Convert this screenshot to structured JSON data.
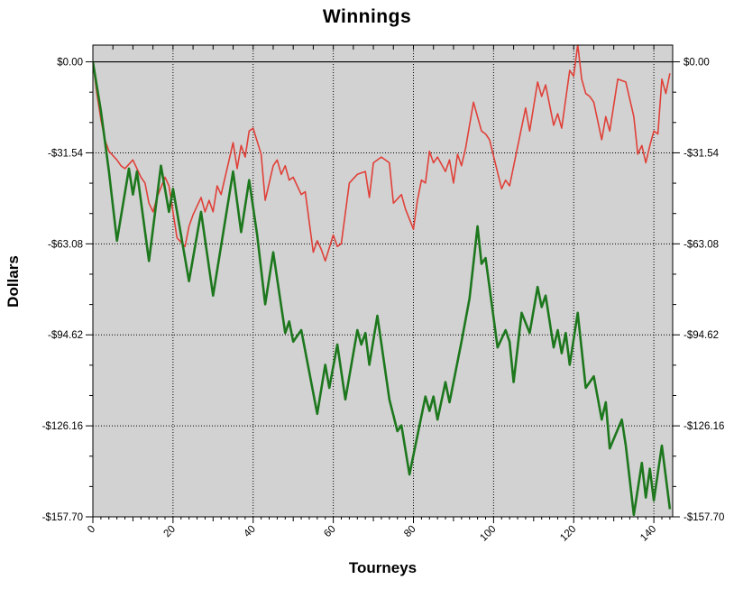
{
  "title": "Winnings",
  "x_axis": {
    "label": "Tourneys",
    "tick_labels": [
      "0",
      "20",
      "40",
      "60",
      "80",
      "100",
      "120",
      "140"
    ],
    "tick_values": [
      0,
      20,
      40,
      60,
      80,
      100,
      120,
      140
    ]
  },
  "y_axis": {
    "label": "Dollars",
    "tick_labels": [
      "$0.00",
      "-$31.54",
      "-$63.08",
      "-$94.62",
      "-$126.16",
      "-$157.70"
    ],
    "tick_values": [
      0,
      -31.54,
      -63.08,
      -94.62,
      -126.16,
      -157.7
    ]
  },
  "colors": {
    "plot_background": "#d2d2d2",
    "page_background": "#ffffff",
    "grid": "#000000",
    "axis": "#000000",
    "red_series": "#e04038",
    "green_series": "#1d771d"
  },
  "chart_data": {
    "type": "line",
    "title": "Winnings",
    "xlabel": "Tourneys",
    "ylabel": "Dollars",
    "xlim": [
      0,
      144.7
    ],
    "ylim": [
      -157.7,
      5.8
    ],
    "grid": "dotted",
    "zero_line": true,
    "legend_position": "none",
    "y_minor_step": 10.513,
    "x_minor_step": 2,
    "series": [
      {
        "name": "series-red",
        "color": "#e04038",
        "stroke_width": 1.6,
        "points": [
          [
            0,
            0
          ],
          [
            1,
            -11
          ],
          [
            2,
            -20
          ],
          [
            3,
            -27
          ],
          [
            4,
            -31
          ],
          [
            6,
            -34
          ],
          [
            7,
            -36
          ],
          [
            8,
            -37
          ],
          [
            10,
            -34
          ],
          [
            12,
            -40
          ],
          [
            13,
            -42
          ],
          [
            14,
            -49
          ],
          [
            15,
            -52
          ],
          [
            16,
            -47
          ],
          [
            18,
            -40
          ],
          [
            19,
            -43
          ],
          [
            21,
            -61
          ],
          [
            23,
            -64
          ],
          [
            24,
            -57
          ],
          [
            25,
            -53
          ],
          [
            27,
            -47
          ],
          [
            28,
            -52
          ],
          [
            29,
            -48
          ],
          [
            30,
            -52
          ],
          [
            31,
            -43
          ],
          [
            32,
            -46
          ],
          [
            35,
            -28
          ],
          [
            36,
            -37
          ],
          [
            37,
            -29
          ],
          [
            38,
            -33
          ],
          [
            39,
            -24
          ],
          [
            40,
            -23
          ],
          [
            42,
            -32
          ],
          [
            43,
            -48
          ],
          [
            45,
            -36
          ],
          [
            46,
            -34
          ],
          [
            47,
            -39
          ],
          [
            48,
            -36
          ],
          [
            49,
            -41
          ],
          [
            50,
            -40
          ],
          [
            52,
            -46
          ],
          [
            53,
            -45
          ],
          [
            55,
            -66
          ],
          [
            56,
            -62
          ],
          [
            57,
            -65
          ],
          [
            58,
            -69
          ],
          [
            60,
            -60
          ],
          [
            61,
            -64
          ],
          [
            62,
            -63
          ],
          [
            64,
            -42
          ],
          [
            66,
            -39
          ],
          [
            68,
            -38
          ],
          [
            69,
            -47
          ],
          [
            70,
            -35
          ],
          [
            72,
            -33
          ],
          [
            74,
            -35
          ],
          [
            75,
            -49
          ],
          [
            77,
            -46
          ],
          [
            78,
            -51
          ],
          [
            80,
            -58
          ],
          [
            81,
            -48
          ],
          [
            82,
            -41
          ],
          [
            83,
            -42
          ],
          [
            84,
            -31
          ],
          [
            85,
            -35
          ],
          [
            86,
            -33
          ],
          [
            88,
            -38
          ],
          [
            89,
            -34
          ],
          [
            90,
            -42
          ],
          [
            91,
            -32
          ],
          [
            92,
            -36
          ],
          [
            93,
            -30
          ],
          [
            95,
            -14
          ],
          [
            97,
            -24
          ],
          [
            98,
            -25
          ],
          [
            99,
            -27
          ],
          [
            102,
            -44
          ],
          [
            103,
            -41
          ],
          [
            104,
            -43
          ],
          [
            108,
            -16
          ],
          [
            109,
            -24
          ],
          [
            111,
            -7
          ],
          [
            112,
            -12
          ],
          [
            113,
            -8
          ],
          [
            115,
            -22
          ],
          [
            116,
            -18
          ],
          [
            117,
            -23
          ],
          [
            119,
            -3
          ],
          [
            120,
            -5
          ],
          [
            121,
            6
          ],
          [
            122,
            -6
          ],
          [
            123,
            -11
          ],
          [
            124,
            -12
          ],
          [
            125,
            -14
          ],
          [
            127,
            -27
          ],
          [
            128,
            -19
          ],
          [
            129,
            -24
          ],
          [
            131,
            -6
          ],
          [
            133,
            -7
          ],
          [
            135,
            -19
          ],
          [
            136,
            -32
          ],
          [
            137,
            -29
          ],
          [
            138,
            -35
          ],
          [
            139,
            -29
          ],
          [
            140,
            -24
          ],
          [
            141,
            -25
          ],
          [
            142,
            -6
          ],
          [
            143,
            -11
          ],
          [
            144,
            -4
          ]
        ]
      },
      {
        "name": "series-green",
        "color": "#1d771d",
        "stroke_width": 2.6,
        "points": [
          [
            0,
            0
          ],
          [
            2,
            -17
          ],
          [
            4,
            -38
          ],
          [
            6,
            -62
          ],
          [
            9,
            -37
          ],
          [
            10,
            -46
          ],
          [
            11,
            -38
          ],
          [
            14,
            -69
          ],
          [
            17,
            -36
          ],
          [
            19,
            -52
          ],
          [
            20,
            -44
          ],
          [
            24,
            -76
          ],
          [
            27,
            -52
          ],
          [
            30,
            -81
          ],
          [
            35,
            -38
          ],
          [
            37,
            -59
          ],
          [
            39,
            -41
          ],
          [
            41,
            -60
          ],
          [
            43,
            -84
          ],
          [
            45,
            -66
          ],
          [
            48,
            -94
          ],
          [
            49,
            -90
          ],
          [
            50,
            -97
          ],
          [
            52,
            -93
          ],
          [
            56,
            -122
          ],
          [
            58,
            -105
          ],
          [
            59,
            -113
          ],
          [
            61,
            -98
          ],
          [
            63,
            -117
          ],
          [
            66,
            -93
          ],
          [
            67,
            -98
          ],
          [
            68,
            -94
          ],
          [
            69,
            -105
          ],
          [
            71,
            -88
          ],
          [
            74,
            -117
          ],
          [
            76,
            -128
          ],
          [
            77,
            -126
          ],
          [
            79,
            -143
          ],
          [
            83,
            -116
          ],
          [
            84,
            -121
          ],
          [
            85,
            -116
          ],
          [
            86,
            -124
          ],
          [
            88,
            -111
          ],
          [
            89,
            -118
          ],
          [
            92,
            -97
          ],
          [
            94,
            -82
          ],
          [
            96,
            -57
          ],
          [
            97,
            -70
          ],
          [
            98,
            -68
          ],
          [
            101,
            -99
          ],
          [
            103,
            -93
          ],
          [
            104,
            -97
          ],
          [
            105,
            -111
          ],
          [
            107,
            -87
          ],
          [
            109,
            -94
          ],
          [
            111,
            -78
          ],
          [
            112,
            -85
          ],
          [
            113,
            -81
          ],
          [
            115,
            -99
          ],
          [
            116,
            -93
          ],
          [
            117,
            -101
          ],
          [
            118,
            -94
          ],
          [
            119,
            -105
          ],
          [
            121,
            -87
          ],
          [
            123,
            -113
          ],
          [
            124,
            -111
          ],
          [
            125,
            -109
          ],
          [
            127,
            -124
          ],
          [
            128,
            -118
          ],
          [
            129,
            -134
          ],
          [
            132,
            -124
          ],
          [
            133,
            -133
          ],
          [
            135,
            -157
          ],
          [
            137,
            -139
          ],
          [
            138,
            -151
          ],
          [
            139,
            -141
          ],
          [
            140,
            -152
          ],
          [
            142,
            -133
          ],
          [
            144,
            -155
          ]
        ]
      }
    ]
  }
}
